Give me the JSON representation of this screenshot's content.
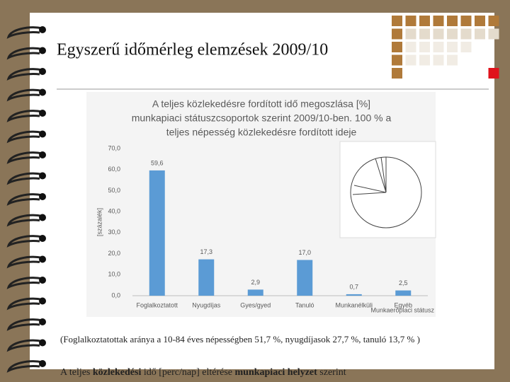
{
  "slide": {
    "title": "Egyszerű időmérleg elemzések 2009/10",
    "note1": "(Foglalkoztatottak aránya a 10-84 éves népességben 51,7 %, nyugdíjasok 27,7 %, tanuló 13,7 % )",
    "note2": [
      "A teljes ",
      "közlekedési",
      " idő [perc/nap] eltérése ",
      "munkapiaci helyzet",
      " szerint"
    ]
  },
  "chart_data": {
    "type": "bar",
    "title": [
      "A teljes közlekedésre fordított idő megoszlása [%]",
      "munkapiaci státuszcsoportok szerint 2009/10-ben.  100 % a",
      "teljes népesség közlekedésre fordított ideje"
    ],
    "y_label": "[százalék]",
    "x_label": "Munkaerőpiaci státusz",
    "categories": [
      "Foglalkoztatott",
      "Nyugdíjas",
      "Gyes/gyed",
      "Tanuló",
      "Munkanélküli",
      "Egyéb"
    ],
    "values": [
      59.6,
      17.3,
      2.9,
      17.0,
      0.7,
      2.5
    ],
    "value_labels": [
      "59,6",
      "17,3",
      "2,9",
      "17,0",
      "0,7",
      "2,5"
    ],
    "color": "#5b9bd5",
    "ylim": [
      0,
      70
    ],
    "yticks": [
      {
        "value": 0,
        "label": "0,0"
      },
      {
        "value": 10,
        "label": "10,0"
      },
      {
        "value": 20,
        "label": "20,0"
      },
      {
        "value": 30,
        "label": "30,0"
      },
      {
        "value": 40,
        "label": "40,0"
      },
      {
        "value": 50,
        "label": "50,0"
      },
      {
        "value": 60,
        "label": "60,0"
      },
      {
        "value": 70,
        "label": "70,0"
      }
    ]
  }
}
